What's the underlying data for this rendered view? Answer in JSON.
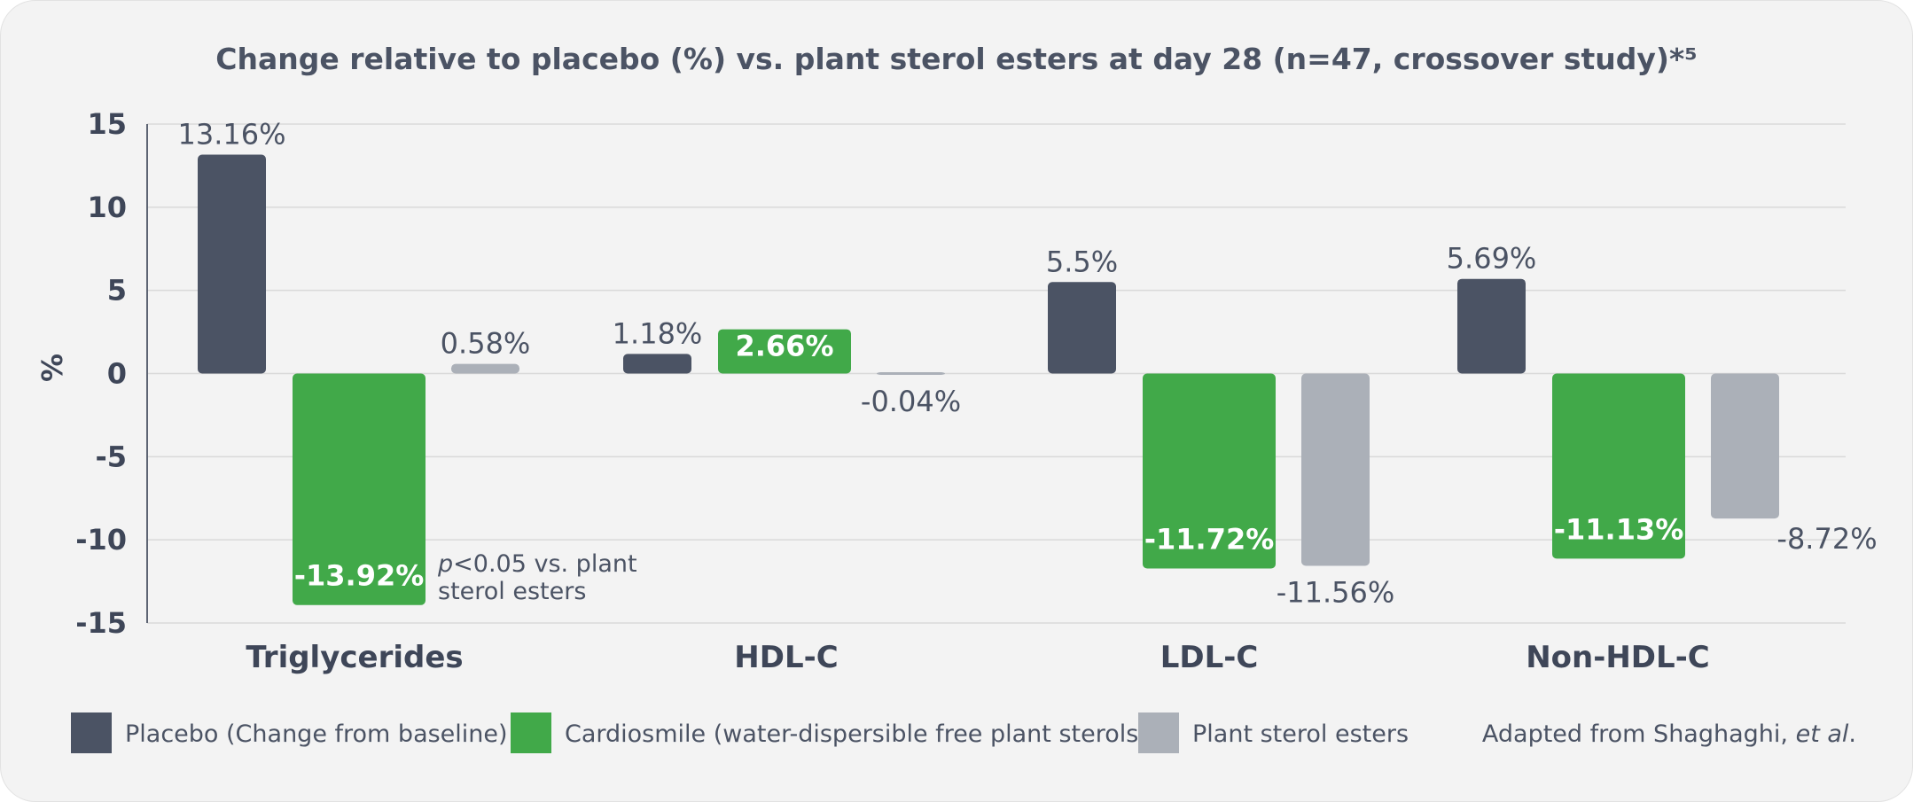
{
  "chart_data": {
    "type": "bar",
    "title": "Change relative to placebo (%) vs. plant sterol esters at day 28 (n=47, crossover study)*⁵",
    "ylabel": "%",
    "ylim": [
      -15,
      15
    ],
    "yticks": [
      15,
      10,
      5,
      0,
      -5,
      -10,
      -15
    ],
    "grid": true,
    "categories": [
      "Triglycerides",
      "HDL-C",
      "LDL-C",
      "Non-HDL-C"
    ],
    "series": [
      {
        "name": "Placebo (Change from baseline)",
        "color": "#4b5364",
        "values": [
          13.16,
          1.18,
          5.5,
          5.69
        ],
        "labels": [
          "13.16%",
          "1.18%",
          "5.5%",
          "5.69%"
        ]
      },
      {
        "name": "Cardiosmile (water-dispersible free plant sterols)",
        "color": "#41a949",
        "values": [
          -13.92,
          2.66,
          -11.72,
          -11.13
        ],
        "labels": [
          "-13.92%",
          "2.66%",
          "-11.72%",
          "-11.13%"
        ]
      },
      {
        "name": "Plant sterol esters",
        "color": "#abb0b8",
        "values": [
          0.58,
          -0.04,
          -11.56,
          -8.72
        ],
        "labels": [
          "0.58%",
          "-0.04%",
          "-11.56%",
          "-8.72%"
        ]
      }
    ],
    "legend_position": "bottom",
    "annotation": {
      "category": "Triglycerides",
      "italic": "p",
      "line1_rest": "<0.05 vs. plant",
      "line2": "sterol esters"
    },
    "source": {
      "prefix": "Adapted from Shaghaghi, ",
      "italic": "et al",
      "suffix": "."
    }
  }
}
